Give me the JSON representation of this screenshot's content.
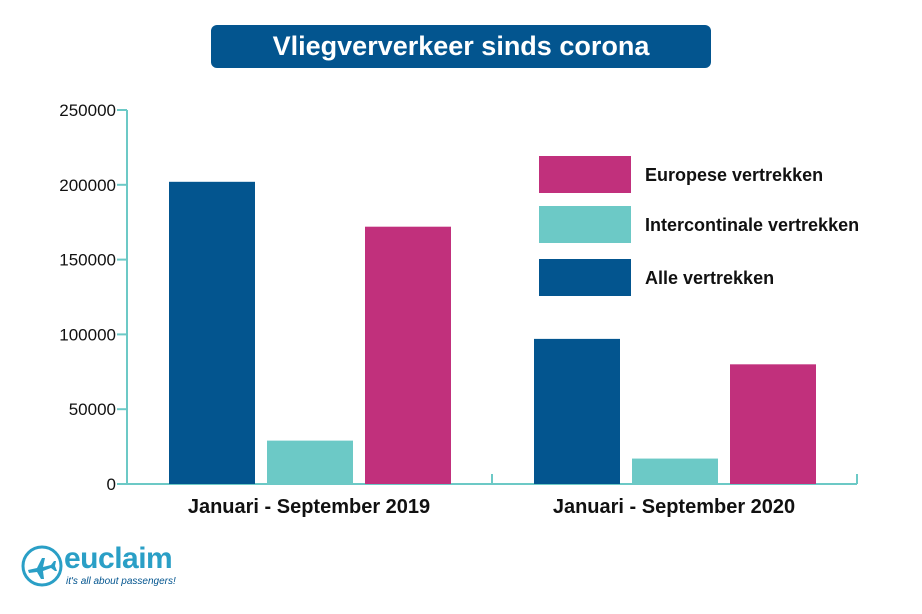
{
  "chart_data": {
    "type": "bar",
    "title": "Vliegververkeer sinds corona",
    "categories": [
      "Januari - September 2019",
      "Januari - September 2020"
    ],
    "series": [
      {
        "name": "Alle vertrekken",
        "values": [
          202000,
          97000
        ]
      },
      {
        "name": "Intercontinale vertrekken",
        "values": [
          29000,
          17000
        ]
      },
      {
        "name": "Europese vertrekken",
        "values": [
          172000,
          80000
        ]
      }
    ],
    "y_ticks": [
      "0",
      "50000",
      "100000",
      "150000",
      "200000",
      "250000"
    ],
    "ylim": [
      0,
      250000
    ],
    "xlabel": "",
    "ylabel": "",
    "grid": false,
    "legend_position": "top-right",
    "legend": [
      "Europese vertrekken",
      "Intercontinale vertrekken",
      "Alle vertrekken"
    ]
  },
  "colors": {
    "Alle vertrekken": "#03558f",
    "Intercontinale vertrekken": "#6cc9c6",
    "Europese vertrekken": "#c1307c",
    "axis": "#6cc9c6",
    "title_bg": "#03558f"
  },
  "logo": {
    "word": "euclaim",
    "tagline": "it's all about passengers!",
    "icon": "airplane-icon"
  }
}
